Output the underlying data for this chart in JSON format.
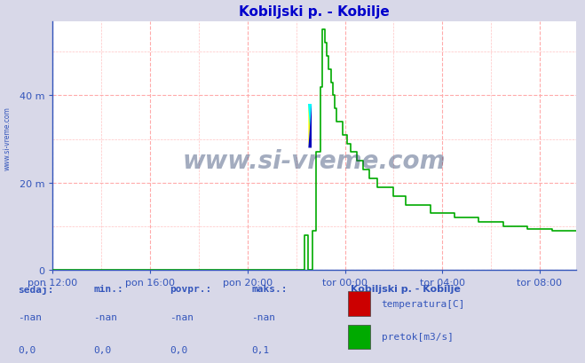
{
  "title": "Kobiljski p. - Kobilje",
  "title_color": "#0000cc",
  "bg_color": "#d8d8e8",
  "plot_bg_color": "#ffffff",
  "grid_color": "#ffaaaa",
  "axis_color": "#3355bb",
  "line_color": "#00aa00",
  "xlim": [
    0,
    1290
  ],
  "ylim": [
    0,
    57
  ],
  "yticks": [
    0,
    20,
    40
  ],
  "ytick_labels": [
    "0",
    "20 m",
    "40 m"
  ],
  "xtick_positions": [
    0,
    240,
    480,
    720,
    960,
    1200
  ],
  "xtick_labels": [
    "pon 12:00",
    "pon 16:00",
    "pon 20:00",
    "tor 00:00",
    "tor 04:00",
    "tor 08:00"
  ],
  "watermark": "www.si-vreme.com",
  "watermark_color": "#1a3060",
  "footer_bg": "#d8d8e8",
  "legend_title": "Kobiljski p. - Kobilje",
  "legend_items": [
    {
      "label": "temperatura[C]",
      "color": "#cc0000"
    },
    {
      "label": "pretok[m3/s]",
      "color": "#00aa00"
    }
  ],
  "table_headers": [
    "sedaj:",
    "min.:",
    "povpr.:",
    "maks.:"
  ],
  "table_row1": [
    "-nan",
    "-nan",
    "-nan",
    "-nan"
  ],
  "table_row2": [
    "0,0",
    "0,0",
    "0,0",
    "0,1"
  ],
  "side_label": "www.si-vreme.com",
  "flow_x": [
    0,
    619,
    620,
    629,
    630,
    639,
    640,
    649,
    650,
    659,
    660,
    664,
    665,
    669,
    670,
    674,
    675,
    679,
    680,
    684,
    685,
    689,
    690,
    694,
    695,
    699,
    700,
    714,
    715,
    724,
    725,
    734,
    735,
    749,
    750,
    764,
    765,
    779,
    780,
    799,
    800,
    839,
    840,
    869,
    870,
    929,
    930,
    989,
    990,
    1049,
    1050,
    1109,
    1110,
    1169,
    1170,
    1229,
    1230,
    1289
  ],
  "flow_y": [
    0,
    0,
    8,
    8,
    0,
    0,
    9,
    9,
    27,
    27,
    42,
    42,
    55,
    55,
    52,
    52,
    49,
    49,
    46,
    46,
    43,
    43,
    40,
    40,
    37,
    37,
    34,
    34,
    31,
    31,
    29,
    29,
    27,
    27,
    25,
    25,
    23,
    23,
    21,
    21,
    19,
    19,
    17,
    17,
    15,
    15,
    13,
    13,
    12,
    12,
    11,
    11,
    10,
    10,
    9.5,
    9.5,
    9,
    9
  ]
}
